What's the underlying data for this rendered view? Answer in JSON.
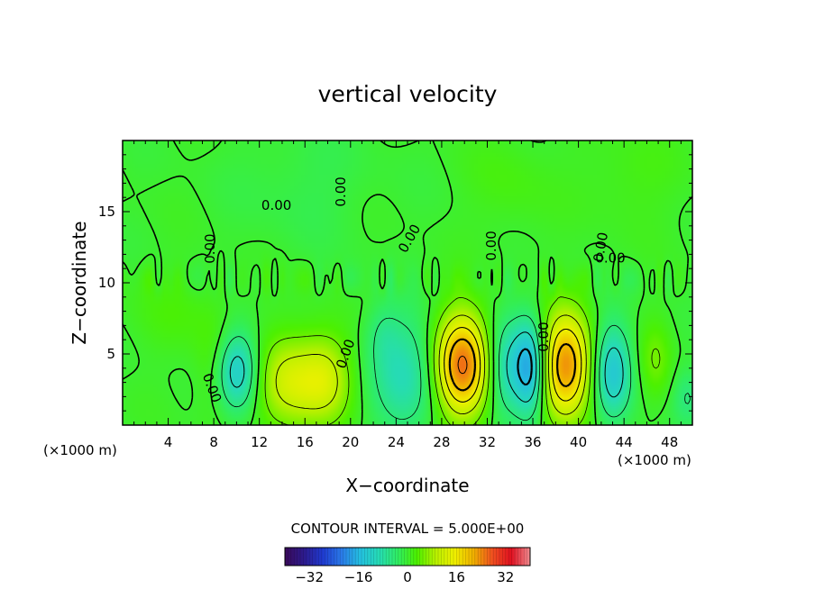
{
  "chart_data": {
    "type": "heatmap",
    "title": "vertical velocity",
    "xlabel": "X−coordinate",
    "ylabel": "Z−coordinate",
    "x_unit": "(×1000 m)",
    "z_unit": "(×1000 m)",
    "xlim": [
      0,
      50
    ],
    "ylim": [
      0,
      20
    ],
    "x_ticks": [
      4,
      8,
      12,
      16,
      20,
      24,
      28,
      32,
      36,
      40,
      44,
      48
    ],
    "y_ticks": [
      5,
      10,
      15
    ],
    "contour_interval_text": "CONTOUR INTERVAL = 5.000E+00",
    "contour_label": "0.00",
    "colorbar": {
      "min": -40,
      "max": 40,
      "ticks": [
        -32,
        -16,
        0,
        16,
        32
      ],
      "tick_labels": [
        "−32",
        "−16",
        "0",
        "16",
        "32"
      ],
      "colors": [
        "#3a0a5a",
        "#2d1a8c",
        "#1f3ad0",
        "#2a7ae8",
        "#24c0e0",
        "#26dcb4",
        "#30ee60",
        "#4cf000",
        "#b8f000",
        "#f0f000",
        "#f0b000",
        "#f05020",
        "#e01020",
        "#f08c90"
      ]
    },
    "annotations": [
      {
        "text": "0.00",
        "x": 13.5,
        "z": 15.4,
        "angle": 0
      },
      {
        "text": "0.00",
        "x": 19.2,
        "z": 16.4,
        "angle": 90
      },
      {
        "text": "0.00",
        "x": 7.7,
        "z": 12.4,
        "angle": 90
      },
      {
        "text": "0.00",
        "x": 25.2,
        "z": 13.1,
        "angle": 60
      },
      {
        "text": "0.00",
        "x": 32.4,
        "z": 12.6,
        "angle": 90
      },
      {
        "text": "0.00",
        "x": 42.0,
        "z": 12.5,
        "angle": 80
      },
      {
        "text": "0.00",
        "x": 42.8,
        "z": 11.7,
        "angle": 0
      },
      {
        "text": "0.00",
        "x": 7.8,
        "z": 2.6,
        "angle": -70
      },
      {
        "text": "0.00",
        "x": 19.6,
        "z": 5.0,
        "angle": 70
      },
      {
        "text": "0.00",
        "x": 37.0,
        "z": 6.2,
        "angle": 90
      }
    ],
    "features": [
      {
        "x": 8.2,
        "z": 4.0,
        "amp": 5,
        "sx": 1.2,
        "sz": 2.5
      },
      {
        "x": 10.0,
        "z": 3.8,
        "amp": -15,
        "sx": 1.4,
        "sz": 2.0
      },
      {
        "x": 14.7,
        "z": 3.0,
        "amp": 12,
        "sx": 2.2,
        "sz": 2.4
      },
      {
        "x": 18.0,
        "z": 3.3,
        "amp": 9,
        "sx": 1.6,
        "sz": 2.2
      },
      {
        "x": 22.8,
        "z": 6.5,
        "amp": -3,
        "sx": 1.0,
        "sz": 1.5
      },
      {
        "x": 24.8,
        "z": 3.6,
        "amp": -9,
        "sx": 2.2,
        "sz": 3.0
      },
      {
        "x": 29.8,
        "z": 4.2,
        "amp": 26,
        "sx": 1.7,
        "sz": 2.6
      },
      {
        "x": 33.6,
        "z": 4.0,
        "amp": -10,
        "sx": 1.2,
        "sz": 2.4
      },
      {
        "x": 35.8,
        "z": 4.0,
        "amp": -18,
        "sx": 1.0,
        "sz": 2.4
      },
      {
        "x": 38.9,
        "z": 4.2,
        "amp": 24,
        "sx": 1.6,
        "sz": 2.6
      },
      {
        "x": 43.0,
        "z": 3.8,
        "amp": -14,
        "sx": 1.2,
        "sz": 2.4
      },
      {
        "x": 46.8,
        "z": 4.6,
        "amp": 5,
        "sx": 1.0,
        "sz": 2.0
      },
      {
        "x": 49.6,
        "z": 2.0,
        "amp": -5,
        "sx": 0.9,
        "sz": 1.4
      },
      {
        "x": 5.0,
        "z": 8.0,
        "amp": 2,
        "sx": 3.0,
        "sz": 2.0
      },
      {
        "x": 44.5,
        "z": 17.5,
        "amp": 2,
        "sx": 3.0,
        "sz": 2.5
      },
      {
        "x": 34.0,
        "z": 17.0,
        "amp": 2,
        "sx": 2.5,
        "sz": 2.5
      },
      {
        "x": 16.0,
        "z": 17.0,
        "amp": -2,
        "sx": 4.0,
        "sz": 3.0
      }
    ]
  }
}
